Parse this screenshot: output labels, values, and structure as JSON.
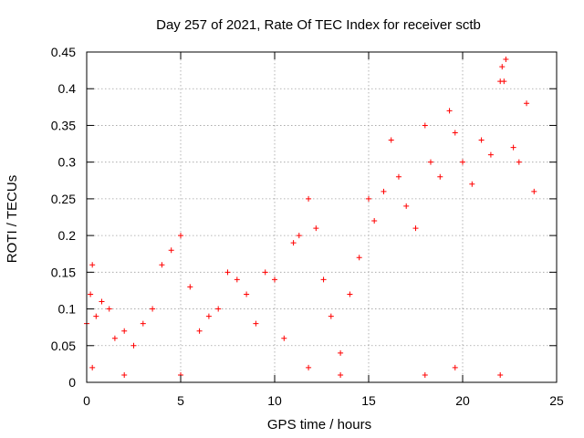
{
  "chart_data": {
    "type": "scatter",
    "title": "Day 257 of 2021, Rate Of TEC Index for receiver sctb",
    "xlabel": "GPS time / hours",
    "ylabel": "ROTI / TECUs",
    "xlim": [
      0,
      25
    ],
    "ylim": [
      0,
      0.45
    ],
    "xticks": [
      0,
      5,
      10,
      15,
      20,
      25
    ],
    "yticks": [
      0,
      0.05,
      0.1,
      0.15,
      0.2,
      0.25,
      0.3,
      0.35,
      0.4,
      0.45
    ],
    "xtick_labels": [
      "0",
      "5",
      "10",
      "15",
      "20",
      "25"
    ],
    "ytick_labels": [
      "0",
      "0.05",
      "0.1",
      "0.15",
      "0.2",
      "0.25",
      "0.3",
      "0.35",
      "0.4",
      "0.45"
    ],
    "grid": true,
    "marker": "+",
    "color": "#ff0000",
    "series": [
      {
        "name": "ROTI",
        "x": [
          0.0,
          0.2,
          0.3,
          0.5,
          0.8,
          1.2,
          1.5,
          2.0,
          2.5,
          3.0,
          3.5,
          4.0,
          4.5,
          5.0,
          5.5,
          6.0,
          6.5,
          7.0,
          7.5,
          8.0,
          8.5,
          9.0,
          9.5,
          10.0,
          10.5,
          11.0,
          11.3,
          11.8,
          12.2,
          12.6,
          13.0,
          13.5,
          14.0,
          14.5,
          15.0,
          15.3,
          15.8,
          16.2,
          16.6,
          17.0,
          17.5,
          18.0,
          18.3,
          18.8,
          19.3,
          19.6,
          20.0,
          20.5,
          21.0,
          21.5,
          22.0,
          22.3,
          22.7,
          23.0,
          23.4,
          23.8,
          0.3,
          2.0,
          5.0,
          11.8,
          13.5,
          18.0,
          19.6,
          22.0,
          22.1,
          22.2
        ],
        "y": [
          0.08,
          0.12,
          0.16,
          0.09,
          0.11,
          0.1,
          0.06,
          0.07,
          0.05,
          0.08,
          0.1,
          0.16,
          0.18,
          0.2,
          0.13,
          0.07,
          0.09,
          0.1,
          0.15,
          0.14,
          0.12,
          0.08,
          0.15,
          0.14,
          0.06,
          0.19,
          0.2,
          0.25,
          0.21,
          0.14,
          0.09,
          0.04,
          0.12,
          0.17,
          0.25,
          0.22,
          0.26,
          0.33,
          0.28,
          0.24,
          0.21,
          0.35,
          0.3,
          0.28,
          0.37,
          0.34,
          0.3,
          0.27,
          0.33,
          0.31,
          0.41,
          0.44,
          0.32,
          0.3,
          0.38,
          0.26,
          0.02,
          0.01,
          0.01,
          0.02,
          0.01,
          0.01,
          0.02,
          0.01,
          0.43,
          0.41
        ]
      }
    ]
  }
}
